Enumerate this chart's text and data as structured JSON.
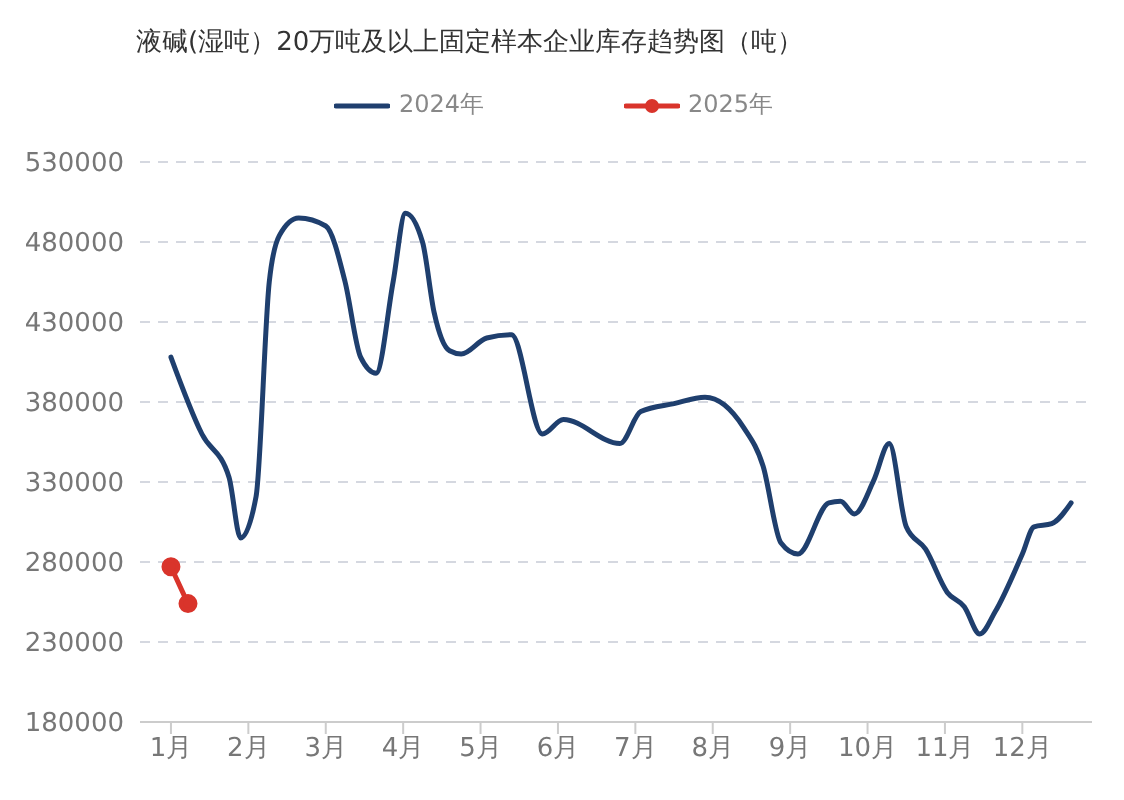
{
  "chart_data": {
    "type": "line",
    "title": "液碱(湿吨）20万吨及以上固定样本企业库存趋势图（吨）",
    "series": [
      {
        "name": "2024年",
        "color": "#1f3f6e",
        "marker": "none",
        "x": [
          1.0,
          1.4,
          1.75,
          1.9,
          2.1,
          2.27,
          2.4,
          2.65,
          3.0,
          3.25,
          3.45,
          3.65,
          3.87,
          4.03,
          4.25,
          4.4,
          4.6,
          4.75,
          5.08,
          5.4,
          5.8,
          6.07,
          6.8,
          7.07,
          7.5,
          7.9,
          8.4,
          8.65,
          8.88,
          9.1,
          9.5,
          9.65,
          9.83,
          10.08,
          10.28,
          10.5,
          10.75,
          11.03,
          11.25,
          11.45,
          11.65,
          12.0,
          12.15,
          12.38,
          12.63
        ],
        "values": [
          408000,
          360000,
          333000,
          295000,
          321000,
          455000,
          484000,
          495000,
          490000,
          455000,
          408000,
          398000,
          455000,
          498000,
          480000,
          436000,
          412000,
          410000,
          420000,
          422000,
          360000,
          369000,
          354000,
          374000,
          379000,
          383000,
          364000,
          340000,
          292000,
          285000,
          317000,
          318000,
          310000,
          331000,
          354000,
          302000,
          288000,
          261000,
          252000,
          235000,
          249000,
          285000,
          302000,
          304000,
          317000
        ]
      },
      {
        "name": "2025年",
        "color": "#d9342b",
        "marker": "circle",
        "x": [
          1.0,
          1.22
        ],
        "values": [
          277000,
          254000
        ]
      }
    ],
    "xlim": [
      0.6,
      12.9
    ],
    "xticks": [
      {
        "value": 1,
        "label": "1月"
      },
      {
        "value": 2,
        "label": "2月"
      },
      {
        "value": 3,
        "label": "3月"
      },
      {
        "value": 4,
        "label": "4月"
      },
      {
        "value": 5,
        "label": "5月"
      },
      {
        "value": 6,
        "label": "6月"
      },
      {
        "value": 7,
        "label": "7月"
      },
      {
        "value": 8,
        "label": "8月"
      },
      {
        "value": 9,
        "label": "9月"
      },
      {
        "value": 10,
        "label": "10月"
      },
      {
        "value": 11,
        "label": "11月"
      },
      {
        "value": 12,
        "label": "12月"
      }
    ],
    "ylim": [
      180000,
      530000
    ],
    "yticks": [
      180000,
      230000,
      280000,
      330000,
      380000,
      430000,
      480000,
      530000
    ],
    "grid": "y",
    "legend": "top",
    "line_style": "solid"
  }
}
